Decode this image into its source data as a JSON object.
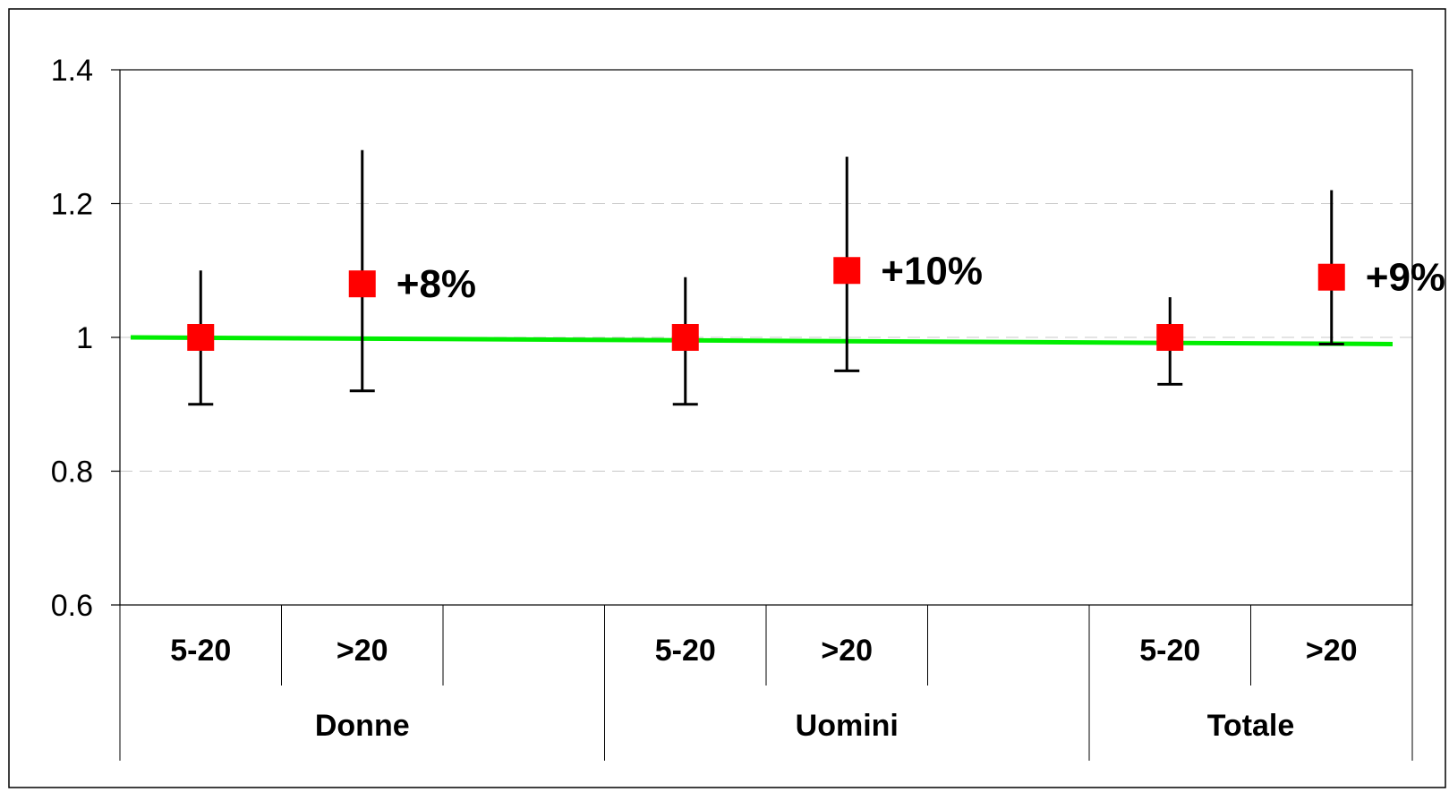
{
  "chart_data": {
    "type": "scatter",
    "title": "",
    "xlabel": "",
    "ylabel": "",
    "ylim": [
      0.6,
      1.4
    ],
    "yticks": [
      "0.6",
      "0.8",
      "1",
      "1.2",
      "1.4"
    ],
    "grid": true,
    "groups": [
      {
        "label": "Donne",
        "subcategories": [
          "5-20",
          ">20"
        ]
      },
      {
        "label": "Uomini",
        "subcategories": [
          "5-20",
          ">20"
        ]
      },
      {
        "label": "Totale",
        "subcategories": [
          "5-20",
          ">20"
        ]
      }
    ],
    "points": [
      {
        "group": "Donne",
        "category": "5-20",
        "value": 1.0,
        "lower": 0.9,
        "upper": 1.1,
        "annotation": ""
      },
      {
        "group": "Donne",
        "category": ">20",
        "value": 1.08,
        "lower": 0.92,
        "upper": 1.28,
        "annotation": "+8%"
      },
      {
        "group": "Uomini",
        "category": "5-20",
        "value": 1.0,
        "lower": 0.9,
        "upper": 1.09,
        "annotation": ""
      },
      {
        "group": "Uomini",
        "category": ">20",
        "value": 1.1,
        "lower": 0.95,
        "upper": 1.27,
        "annotation": "+10%"
      },
      {
        "group": "Totale",
        "category": "5-20",
        "value": 1.0,
        "lower": 0.93,
        "upper": 1.06,
        "annotation": ""
      },
      {
        "group": "Totale",
        "category": ">20",
        "value": 1.09,
        "lower": 0.99,
        "upper": 1.22,
        "annotation": "+9%"
      }
    ],
    "reference_line": {
      "start": 1.0,
      "end": 0.99
    },
    "colors": {
      "marker": "#ff0000",
      "reference_line": "#00ee00",
      "error_bar": "#000000",
      "grid": "#c8c8c8"
    }
  }
}
